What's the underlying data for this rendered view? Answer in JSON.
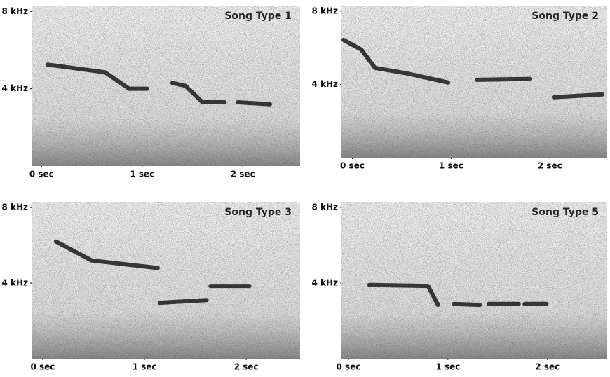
{
  "chart_data": [
    {
      "type": "spectrogram",
      "title": "Song Type 1",
      "color": "#1a1a1a",
      "x": [
        0.06,
        0.63,
        0.87,
        1.05,
        null,
        1.3,
        1.43,
        1.6,
        1.82,
        null,
        1.95,
        2.27
      ],
      "values": [
        5.25,
        4.85,
        4.0,
        4.0,
        null,
        4.3,
        4.15,
        3.3,
        3.3,
        null,
        3.3,
        3.2
      ],
      "xlim": [
        -0.1,
        2.57
      ],
      "ylim": [
        0,
        8.3
      ],
      "xticks": [
        {
          "value": 0,
          "label": "0 sec"
        },
        {
          "value": 1,
          "label": "1 sec"
        },
        {
          "value": 2,
          "label": "2 sec"
        }
      ],
      "yticks": [
        {
          "value": 8,
          "label": "8 kHz"
        },
        {
          "value": 4,
          "label": "4 kHz"
        }
      ]
    },
    {
      "type": "spectrogram",
      "title": "Song Type 2",
      "color": "#1a1a1a",
      "x": [
        -0.09,
        0.09,
        0.23,
        0.55,
        0.97,
        null,
        1.26,
        1.8,
        null,
        2.04,
        2.53
      ],
      "values": [
        6.43,
        5.9,
        4.9,
        4.6,
        4.1,
        null,
        4.25,
        4.3,
        null,
        3.3,
        3.45
      ],
      "xlim": [
        -0.11,
        2.58
      ],
      "ylim": [
        0,
        8.3
      ],
      "xticks": [
        {
          "value": 0,
          "label": "0 sec"
        },
        {
          "value": 1,
          "label": "1 sec"
        },
        {
          "value": 2,
          "label": "2 sec"
        }
      ],
      "yticks": [
        {
          "value": 8,
          "label": "8 kHz"
        },
        {
          "value": 4,
          "label": "4 kHz"
        }
      ]
    },
    {
      "type": "spectrogram",
      "title": "Song Type 3",
      "color": "#1a1a1a",
      "x": [
        0.13,
        0.48,
        1.13,
        null,
        1.15,
        1.61,
        null,
        1.65,
        2.03
      ],
      "values": [
        6.2,
        5.2,
        4.8,
        null,
        2.96,
        3.1,
        null,
        3.85,
        3.85
      ],
      "xlim": [
        -0.11,
        2.53
      ],
      "ylim": [
        0,
        8.3
      ],
      "xticks": [
        {
          "value": 0,
          "label": "0 sec"
        },
        {
          "value": 1,
          "label": "1 sec"
        },
        {
          "value": 2,
          "label": "2 sec"
        }
      ],
      "yticks": [
        {
          "value": 8,
          "label": "8 kHz"
        },
        {
          "value": 4,
          "label": "4 kHz"
        }
      ]
    },
    {
      "type": "spectrogram",
      "title": "Song Type 5",
      "color": "#1a1a1a",
      "x": [
        0.21,
        0.8,
        0.9,
        null,
        1.06,
        1.32,
        null,
        1.41,
        1.71,
        null,
        1.77,
        1.99
      ],
      "values": [
        3.9,
        3.85,
        2.85,
        null,
        2.9,
        2.85,
        null,
        2.9,
        2.9,
        null,
        2.9,
        2.9
      ],
      "xlim": [
        -0.07,
        2.6
      ],
      "ylim": [
        0,
        8.3
      ],
      "xticks": [
        {
          "value": 0,
          "label": "0 sec"
        },
        {
          "value": 1,
          "label": "1 sec"
        },
        {
          "value": 2,
          "label": "2 sec"
        }
      ],
      "yticks": [
        {
          "value": 8,
          "label": "8 kHz"
        },
        {
          "value": 4,
          "label": "4 kHz"
        }
      ]
    }
  ]
}
